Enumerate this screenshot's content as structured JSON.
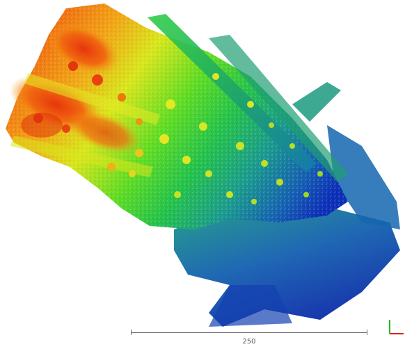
{
  "viewer": {
    "background_color": "#ffffff",
    "colormap": [
      "#0b2fb5",
      "#1670b0",
      "#1aa08a",
      "#22c05a",
      "#3fd52a",
      "#9be51e",
      "#e2e81a",
      "#f59a12",
      "#e8420f"
    ]
  },
  "scale_bar": {
    "label": "250"
  },
  "axis_gizmo": {
    "x_axis_color": "#e02020",
    "y_axis_color": "#20c020"
  }
}
